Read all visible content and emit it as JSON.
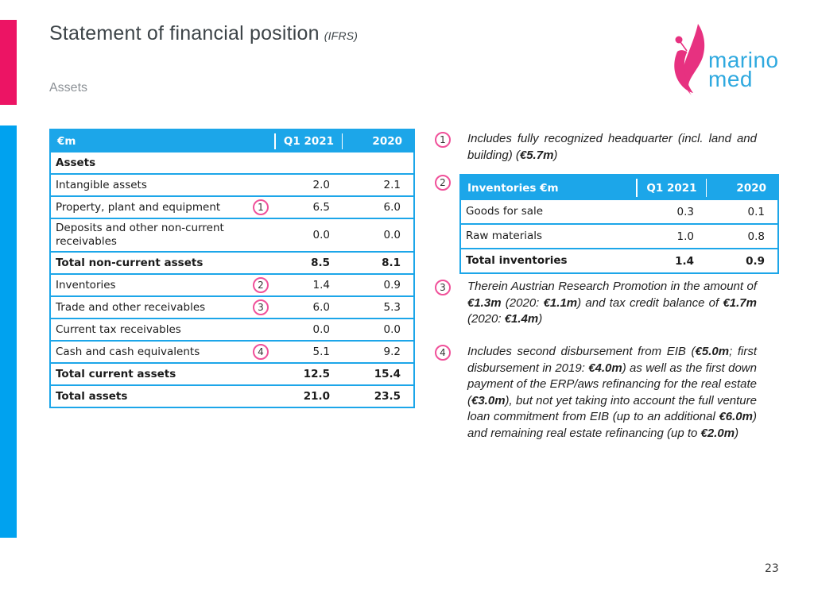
{
  "header": {
    "title": "Statement of financial position",
    "title_suffix": "(IFRS)",
    "subtitle": "Assets"
  },
  "logo": {
    "line1": "marino",
    "line2": "med"
  },
  "colors": {
    "accent_pink": "#EC1464",
    "accent_blue": "#00A2EF",
    "table_blue": "#1CA6E9",
    "logo_blue": "#2FA9DF"
  },
  "main_table": {
    "headers": [
      "€m",
      "Q1 2021",
      "2020"
    ],
    "rows": [
      {
        "label": "Assets",
        "q1": "",
        "y2020": "",
        "bold": true
      },
      {
        "label": "Intangible assets",
        "q1": "2.0",
        "y2020": "2.1"
      },
      {
        "label": "Property, plant and equipment",
        "marker": "1",
        "q1": "6.5",
        "y2020": "6.0"
      },
      {
        "label": "Deposits and other non-current receivables",
        "q1": "0.0",
        "y2020": "0.0"
      },
      {
        "label": "Total non-current assets",
        "q1": "8.5",
        "y2020": "8.1",
        "bold": true
      },
      {
        "label": "Inventories",
        "marker": "2",
        "q1": "1.4",
        "y2020": "0.9"
      },
      {
        "label": "Trade and other receivables",
        "marker": "3",
        "q1": "6.0",
        "y2020": "5.3"
      },
      {
        "label": "Current tax receivables",
        "q1": "0.0",
        "y2020": "0.0"
      },
      {
        "label": "Cash and cash equivalents",
        "marker": "4",
        "q1": "5.1",
        "y2020": "9.2"
      },
      {
        "label": "Total current assets",
        "q1": "12.5",
        "y2020": "15.4",
        "bold": true
      },
      {
        "label": "Total assets",
        "q1": "21.0",
        "y2020": "23.5",
        "bold": true
      }
    ]
  },
  "inventories_table": {
    "headers": [
      "Inventories €m",
      "Q1 2021",
      "2020"
    ],
    "rows": [
      {
        "label": "Goods for sale",
        "q1": "0.3",
        "y2020": "0.1"
      },
      {
        "label": "Raw materials",
        "q1": "1.0",
        "y2020": "0.8"
      },
      {
        "label": "Total inventories",
        "q1": "1.4",
        "y2020": "0.9",
        "bold": true
      }
    ]
  },
  "annotations": [
    {
      "id": "1",
      "segments": [
        [
          "Includes fully recognized headquarter (incl. land and building) (",
          0
        ],
        [
          "€5.7m",
          1
        ],
        [
          ")",
          0
        ]
      ]
    },
    {
      "id": "2",
      "segments": []
    },
    {
      "id": "3",
      "segments": [
        [
          "Therein Austrian Research Promotion in the amount of ",
          0
        ],
        [
          "€1.3m",
          1
        ],
        [
          " (2020: ",
          0
        ],
        [
          "€1.1m",
          1
        ],
        [
          ") and tax credit balance of ",
          0
        ],
        [
          "€1.7m",
          1
        ],
        [
          " (2020: ",
          0
        ],
        [
          "€1.4m",
          1
        ],
        [
          ")",
          0
        ]
      ]
    },
    {
      "id": "4",
      "segments": [
        [
          "Includes second disbursement from EIB (",
          0
        ],
        [
          "€5.0m",
          1
        ],
        [
          "; first disbursement in 2019: ",
          0
        ],
        [
          "€4.0m",
          1
        ],
        [
          ") as well as the first down payment of the ERP/aws refinancing for the real estate (",
          0
        ],
        [
          "€3.0m",
          1
        ],
        [
          "), but not yet taking into account the full venture loan commitment from EIB (up to an additional ",
          0
        ],
        [
          "€6.0m",
          1
        ],
        [
          ") and remaining real estate refinancing (up to ",
          0
        ],
        [
          "€2.0m",
          1
        ],
        [
          ")",
          0
        ]
      ]
    }
  ],
  "footer": {
    "page_number": "23"
  }
}
